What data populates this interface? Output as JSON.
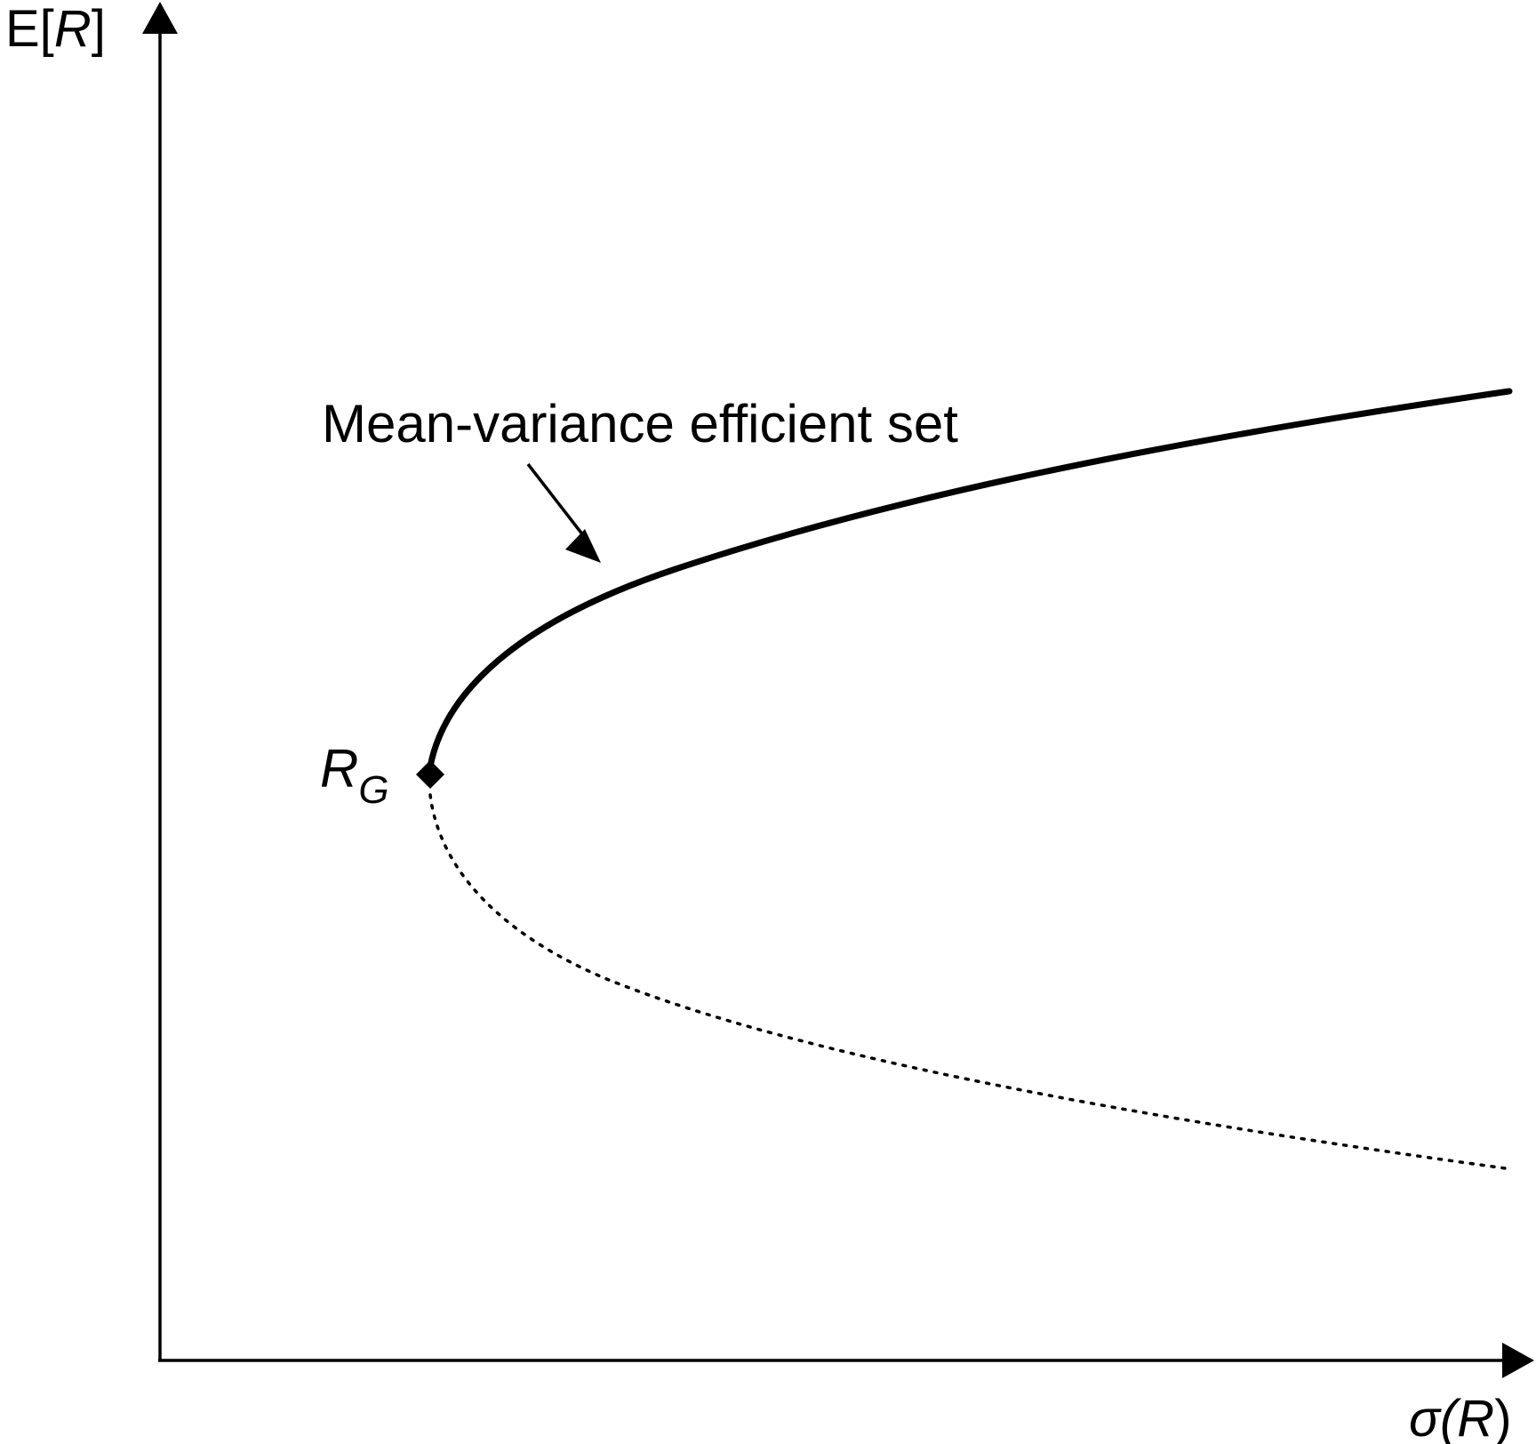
{
  "axes": {
    "y_label": {
      "prefix": "E[",
      "var": "R",
      "suffix": "]"
    },
    "x_label": {
      "prefix": "σ(",
      "var": "R",
      "suffix": ")"
    }
  },
  "curves": {
    "efficient": {
      "label": "Mean-variance efficient set",
      "style": "solid-thick"
    },
    "inefficient": {
      "style": "dotted"
    }
  },
  "points": {
    "min_variance": {
      "label_main": "R",
      "label_sub": "G",
      "marker": "diamond"
    }
  },
  "colors": {
    "ink": "#000000",
    "background": "#ffffff"
  }
}
